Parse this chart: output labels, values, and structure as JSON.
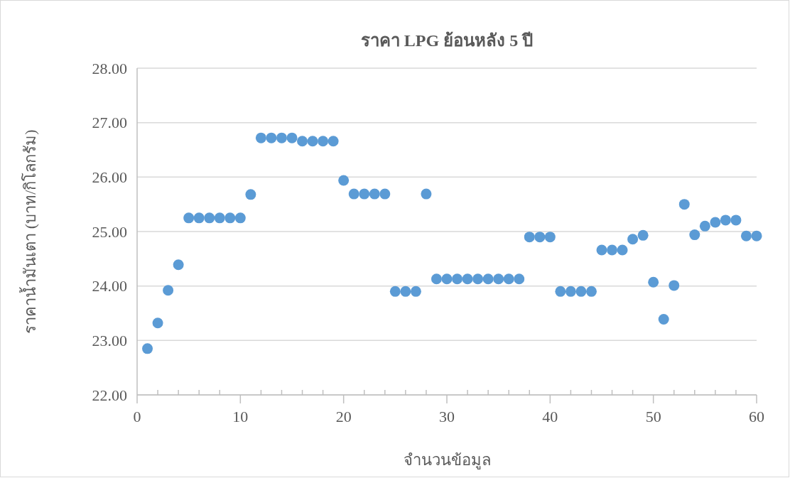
{
  "chart_data": {
    "type": "scatter",
    "title": "ราคา LPG ย้อนหลัง 5 ปี",
    "xlabel": "จำนวนข้อมูล",
    "ylabel": "ราคาน้ำมันเตา (บาท/กิโลกรัม)",
    "x": [
      1,
      2,
      3,
      4,
      5,
      6,
      7,
      8,
      9,
      10,
      11,
      12,
      13,
      14,
      15,
      16,
      17,
      18,
      19,
      20,
      21,
      22,
      23,
      24,
      25,
      26,
      27,
      28,
      29,
      30,
      31,
      32,
      33,
      34,
      35,
      36,
      37,
      38,
      39,
      40,
      41,
      42,
      43,
      44,
      45,
      46,
      47,
      48,
      49,
      50,
      51,
      52,
      53,
      54,
      55,
      56,
      57,
      58,
      59,
      60
    ],
    "series": [
      {
        "color": "#5b9bd5",
        "values": [
          22.85,
          23.32,
          23.92,
          24.39,
          25.25,
          25.25,
          25.25,
          25.25,
          25.25,
          25.25,
          25.68,
          26.72,
          26.72,
          26.72,
          26.72,
          26.66,
          26.66,
          26.66,
          26.66,
          25.94,
          25.69,
          25.69,
          25.69,
          25.69,
          23.9,
          23.9,
          23.9,
          25.69,
          24.13,
          24.13,
          24.13,
          24.13,
          24.13,
          24.13,
          24.13,
          24.13,
          24.13,
          24.9,
          24.9,
          24.9,
          23.9,
          23.9,
          23.9,
          23.9,
          24.66,
          24.66,
          24.66,
          24.86,
          24.93,
          24.07,
          23.39,
          24.01,
          25.5,
          24.94,
          25.1,
          25.17,
          25.21,
          25.21,
          24.92,
          24.92
        ]
      }
    ],
    "xlim": [
      0,
      60
    ],
    "xticks": [
      0,
      {
        "value": 2,
        "label": null
      },
      {
        "value": 4,
        "label": null
      },
      {
        "value": 6,
        "label": null
      },
      {
        "value": 8,
        "label": null
      },
      10,
      {
        "value": 12,
        "label": null
      },
      {
        "value": 14,
        "label": null
      },
      {
        "value": 16,
        "label": null
      },
      {
        "value": 18,
        "label": null
      },
      20,
      {
        "value": 22,
        "label": null
      },
      {
        "value": 24,
        "label": null
      },
      {
        "value": 26,
        "label": null
      },
      {
        "value": 28,
        "label": null
      },
      30,
      {
        "value": 32,
        "label": null
      },
      {
        "value": 34,
        "label": null
      },
      {
        "value": 36,
        "label": null
      },
      {
        "value": 38,
        "label": null
      },
      40,
      {
        "value": 42,
        "label": null
      },
      {
        "value": 44,
        "label": null
      },
      {
        "value": 46,
        "label": null
      },
      {
        "value": 48,
        "label": null
      },
      50,
      {
        "value": 52,
        "label": null
      },
      {
        "value": 54,
        "label": null
      },
      {
        "value": 56,
        "label": null
      },
      {
        "value": 58,
        "label": null
      },
      60
    ],
    "ylim": [
      22,
      28
    ],
    "yticks": [
      {
        "value": 22,
        "label": "22.00"
      },
      {
        "value": 23,
        "label": "23.00"
      },
      {
        "value": 24,
        "label": "24.00"
      },
      {
        "value": 25,
        "label": "25.00"
      },
      {
        "value": 26,
        "label": "26.00"
      },
      {
        "value": 27,
        "label": "27.00"
      },
      {
        "value": 28,
        "label": "28.00"
      }
    ],
    "grid": "y",
    "marker": "circle"
  }
}
